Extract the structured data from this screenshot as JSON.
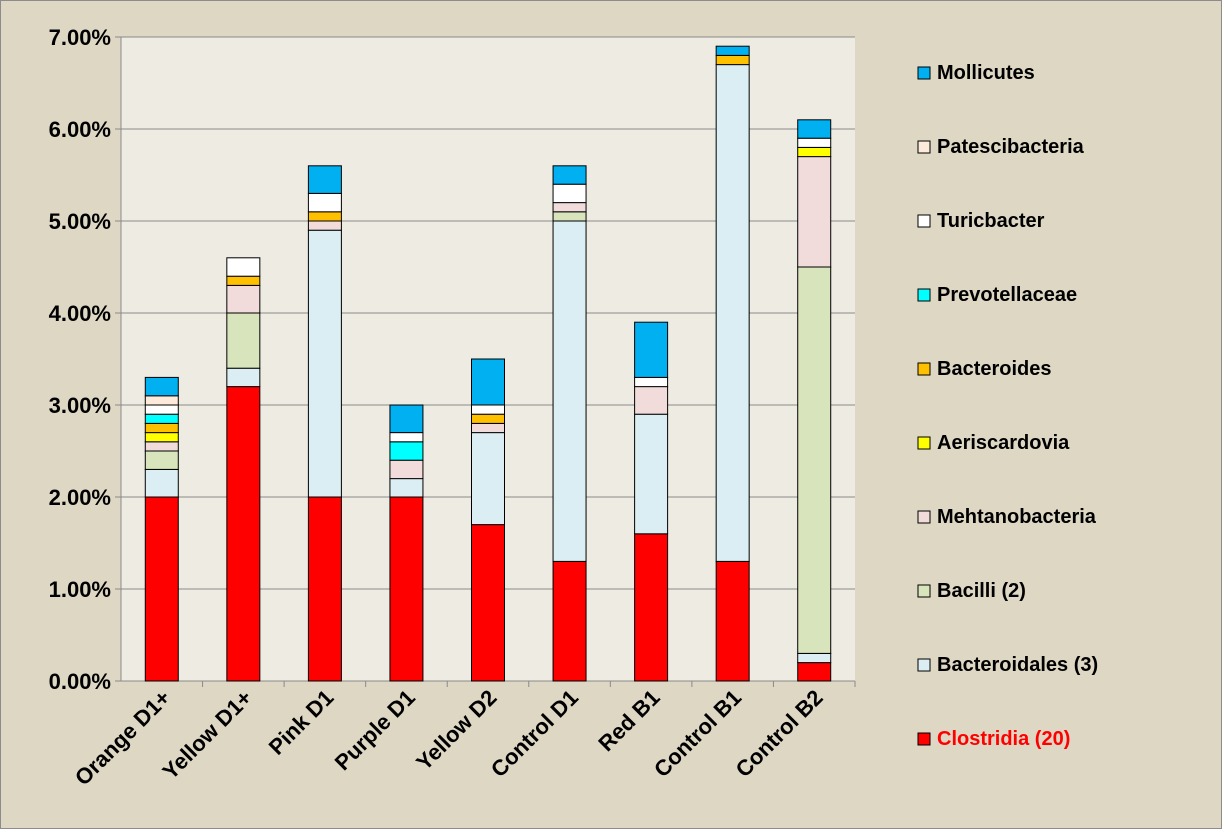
{
  "chart_data": {
    "type": "bar",
    "stacked": true,
    "categories": [
      "Orange D1+",
      "Yellow D1+",
      "Pink D1",
      "Purple D1",
      "Yellow D2",
      "Control D1",
      "Red B1",
      "Control B1",
      "Control B2"
    ],
    "ylim": [
      0,
      7
    ],
    "yticks": [
      "0.00%",
      "1.00%",
      "2.00%",
      "3.00%",
      "4.00%",
      "5.00%",
      "6.00%",
      "7.00%"
    ],
    "grid": true,
    "legend_position": "right",
    "plot_background": "#eeece2",
    "series": [
      {
        "name": "Clostridia (20)",
        "color": "#ff0000",
        "label_color": "#ff0000",
        "values": [
          2.0,
          3.2,
          2.0,
          2.0,
          1.7,
          1.3,
          1.6,
          1.3,
          0.2
        ]
      },
      {
        "name": "Bacteroidales (3)",
        "color": "#dbeef3",
        "label_color": "#000000",
        "values": [
          0.3,
          0.2,
          2.9,
          0.2,
          1.0,
          3.7,
          1.3,
          5.4,
          0.1
        ]
      },
      {
        "name": "Bacilli (2)",
        "color": "#d7e4bc",
        "label_color": "#000000",
        "values": [
          0.2,
          0.6,
          0.0,
          0.0,
          0.0,
          0.1,
          0.0,
          0.0,
          4.2
        ]
      },
      {
        "name": "Mehtanobacteria",
        "color": "#f2dcdb",
        "label_color": "#000000",
        "values": [
          0.1,
          0.3,
          0.1,
          0.2,
          0.1,
          0.1,
          0.3,
          0.0,
          1.2
        ]
      },
      {
        "name": "Aeriscardovia",
        "color": "#ffff00",
        "label_color": "#000000",
        "values": [
          0.1,
          0.0,
          0.0,
          0.0,
          0.0,
          0.0,
          0.0,
          0.0,
          0.1
        ]
      },
      {
        "name": "Bacteroides",
        "color": "#ffc000",
        "label_color": "#000000",
        "values": [
          0.1,
          0.1,
          0.1,
          0.0,
          0.1,
          0.0,
          0.0,
          0.1,
          0.0
        ]
      },
      {
        "name": "Prevotellaceae",
        "color": "#00ffff",
        "label_color": "#000000",
        "values": [
          0.1,
          0.0,
          0.0,
          0.2,
          0.0,
          0.0,
          0.0,
          0.0,
          0.0
        ]
      },
      {
        "name": "Turicbacter",
        "color": "#ffffff",
        "label_color": "#000000",
        "values": [
          0.1,
          0.2,
          0.2,
          0.1,
          0.1,
          0.2,
          0.1,
          0.0,
          0.1
        ]
      },
      {
        "name": "Patescibacteria",
        "color": "#fdeada",
        "label_color": "#000000",
        "values": [
          0.1,
          0.0,
          0.0,
          0.0,
          0.0,
          0.0,
          0.0,
          0.0,
          0.0
        ]
      },
      {
        "name": "Mollicutes",
        "color": "#00b0f0",
        "label_color": "#000000",
        "values": [
          0.2,
          0.0,
          0.3,
          0.3,
          0.5,
          0.2,
          0.6,
          0.1,
          0.2
        ]
      }
    ]
  }
}
